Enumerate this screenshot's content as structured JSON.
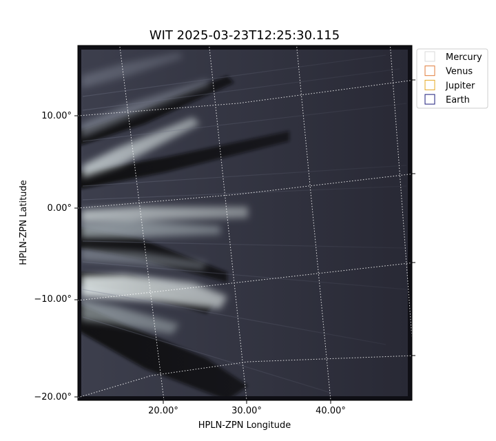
{
  "chart_data": {
    "type": "heatmap",
    "title": "WIT 2025-03-23T12:25:30.115",
    "xlabel": "HPLN-ZPN Longitude",
    "ylabel": "HPLN-ZPN Latitude",
    "x_ticks": [
      "20.00°",
      "30.00°",
      "40.00°"
    ],
    "y_ticks": [
      "10.00°",
      "0.00°",
      "−10.00°",
      "−20.00°"
    ],
    "x_tick_values": [
      20,
      30,
      40
    ],
    "y_tick_values": [
      10,
      0,
      -10,
      -20
    ],
    "grid": true,
    "colormap": "bone",
    "legend_position": "top-right",
    "legend": [
      {
        "label": "Mercury",
        "color": "#d9d9d9"
      },
      {
        "label": "Venus",
        "color": "#e07b39"
      },
      {
        "label": "Jupiter",
        "color": "#e5a823"
      },
      {
        "label": "Earth",
        "color": "#1a1a7a"
      }
    ]
  }
}
